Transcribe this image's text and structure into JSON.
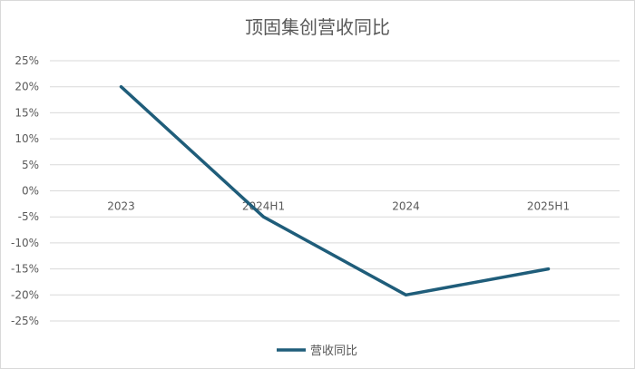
{
  "chart_data": {
    "type": "line",
    "title": "顶固集创营收同比",
    "categories": [
      "2023",
      "2024H1",
      "2024",
      "2025H1"
    ],
    "series": [
      {
        "name": "营收同比",
        "values": [
          20,
          -5,
          -20,
          -15
        ],
        "color": "#1f5d7a"
      }
    ],
    "ylim": [
      -25,
      25
    ],
    "yticks": [
      25,
      20,
      15,
      10,
      5,
      0,
      -5,
      -10,
      -15,
      -20,
      -25
    ],
    "ytick_format": "percent",
    "grid": true,
    "grid_color": "#d9d9d9",
    "legend_position": "bottom",
    "xlabel": "",
    "ylabel": ""
  }
}
